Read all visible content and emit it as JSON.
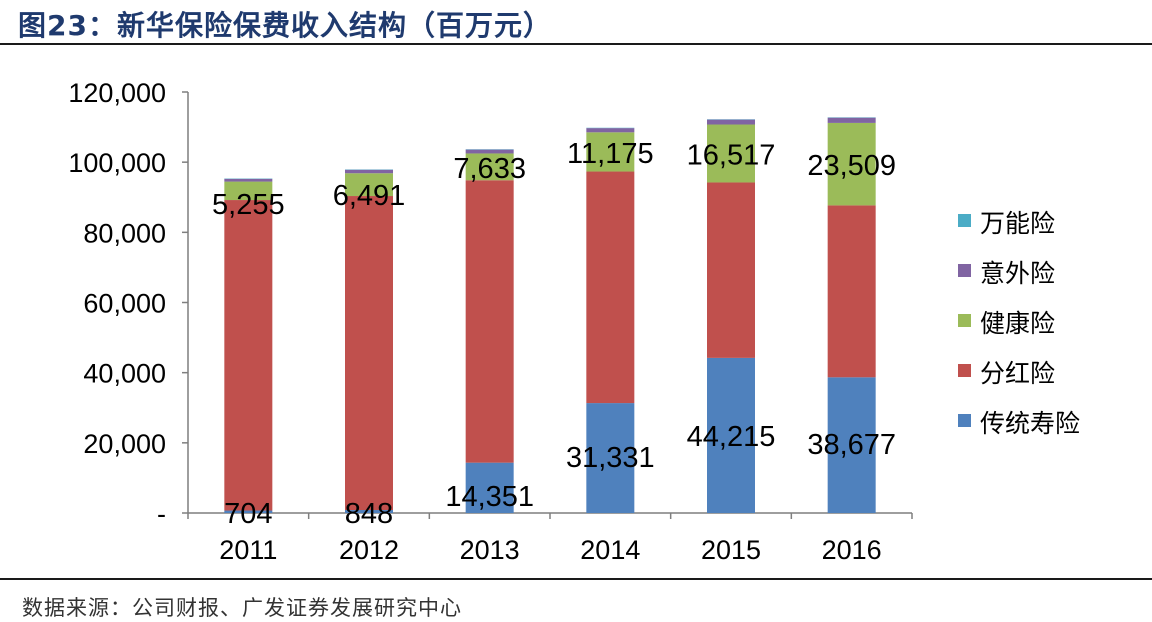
{
  "figure": {
    "title": "图23：新华保险保费收入结构（百万元）",
    "source": "数据来源：公司财报、广发证券发展研究中心"
  },
  "chart_data": {
    "type": "bar",
    "stacked": true,
    "categories": [
      "2011",
      "2012",
      "2013",
      "2014",
      "2015",
      "2016"
    ],
    "ylim": [
      0,
      120000
    ],
    "y_ticks": [
      0,
      20000,
      40000,
      60000,
      80000,
      100000,
      120000
    ],
    "y_tick_labels": [
      "-",
      "20,000",
      "40,000",
      "60,000",
      "80,000",
      "100,000",
      "120,000"
    ],
    "grid": false,
    "legend_position": "right",
    "series": [
      {
        "name": "传统寿险",
        "color": "#4f81bd",
        "values": [
          704,
          848,
          14351,
          31331,
          44215,
          38677
        ],
        "labels": [
          "704",
          "848",
          "14,351",
          "31,331",
          "44,215",
          "38,677"
        ]
      },
      {
        "name": "分红险",
        "color": "#c0504d",
        "values": [
          88500,
          89500,
          80500,
          66000,
          50000,
          49000
        ]
      },
      {
        "name": "健康险",
        "color": "#9bbb59",
        "values": [
          5255,
          6491,
          7633,
          11175,
          16517,
          23509
        ],
        "labels": [
          "5,255",
          "6,491",
          "7,633",
          "11,175",
          "16,517",
          "23,509"
        ]
      },
      {
        "name": "意外险",
        "color": "#8064a2",
        "values": [
          800,
          1000,
          1100,
          1200,
          1400,
          1500
        ]
      },
      {
        "name": "万能险",
        "color": "#4bacc6",
        "values": [
          100,
          100,
          100,
          100,
          100,
          100
        ]
      }
    ]
  }
}
